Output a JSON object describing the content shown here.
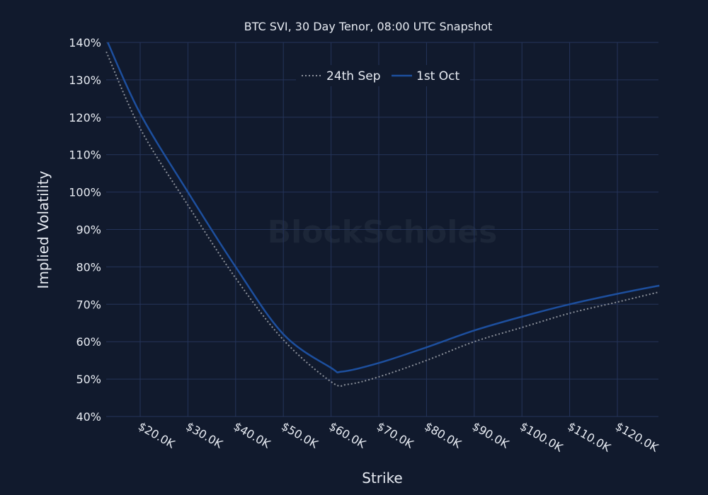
{
  "chart_data": {
    "type": "line",
    "title": "BTC SVI, 30 Day Tenor, 08:00 UTC Snapshot",
    "xlabel": "Strike",
    "ylabel": "Implied Volatility",
    "watermark": "BlockScholes",
    "xlim": [
      12.9,
      128.8
    ],
    "ylim": [
      40,
      140
    ],
    "x_unit": "$K",
    "x_ticks": [
      20,
      30,
      40,
      50,
      60,
      70,
      80,
      90,
      100,
      110,
      120
    ],
    "x_tick_labels": [
      "$20.0K",
      "$30.0K",
      "$40.0K",
      "$50.0K",
      "$60.0K",
      "$70.0K",
      "$80.0K",
      "$90.0K",
      "$100.0K",
      "$110.0K",
      "$120.0K"
    ],
    "y_ticks": [
      40,
      50,
      60,
      70,
      80,
      90,
      100,
      110,
      120,
      130,
      140
    ],
    "y_tick_labels": [
      "40%",
      "50%",
      "60%",
      "70%",
      "80%",
      "90%",
      "100%",
      "110%",
      "120%",
      "130%",
      "140%"
    ],
    "grid": true,
    "legend_position": "top-center",
    "series": [
      {
        "name": "24th Sep",
        "style": "dotted",
        "color": "#8c919b",
        "x": [
          12.9,
          20,
          30,
          40,
          50,
          60,
          63.5,
          70,
          80,
          90,
          100,
          110,
          120,
          128.8
        ],
        "values": [
          137.5,
          117,
          96.5,
          77,
          60.5,
          49.3,
          48.6,
          50.6,
          55,
          60,
          63.8,
          67.6,
          70.6,
          73.3
        ]
      },
      {
        "name": "1st Oct",
        "style": "solid",
        "color": "#1d4f9e",
        "x": [
          13.2,
          20,
          30,
          40,
          50,
          60,
          62.3,
          70,
          80,
          90,
          100,
          110,
          120,
          128.8
        ],
        "values": [
          140,
          121,
          100,
          80,
          62,
          53,
          52,
          54.3,
          58.5,
          63,
          66.7,
          70,
          72.8,
          75
        ]
      }
    ]
  }
}
